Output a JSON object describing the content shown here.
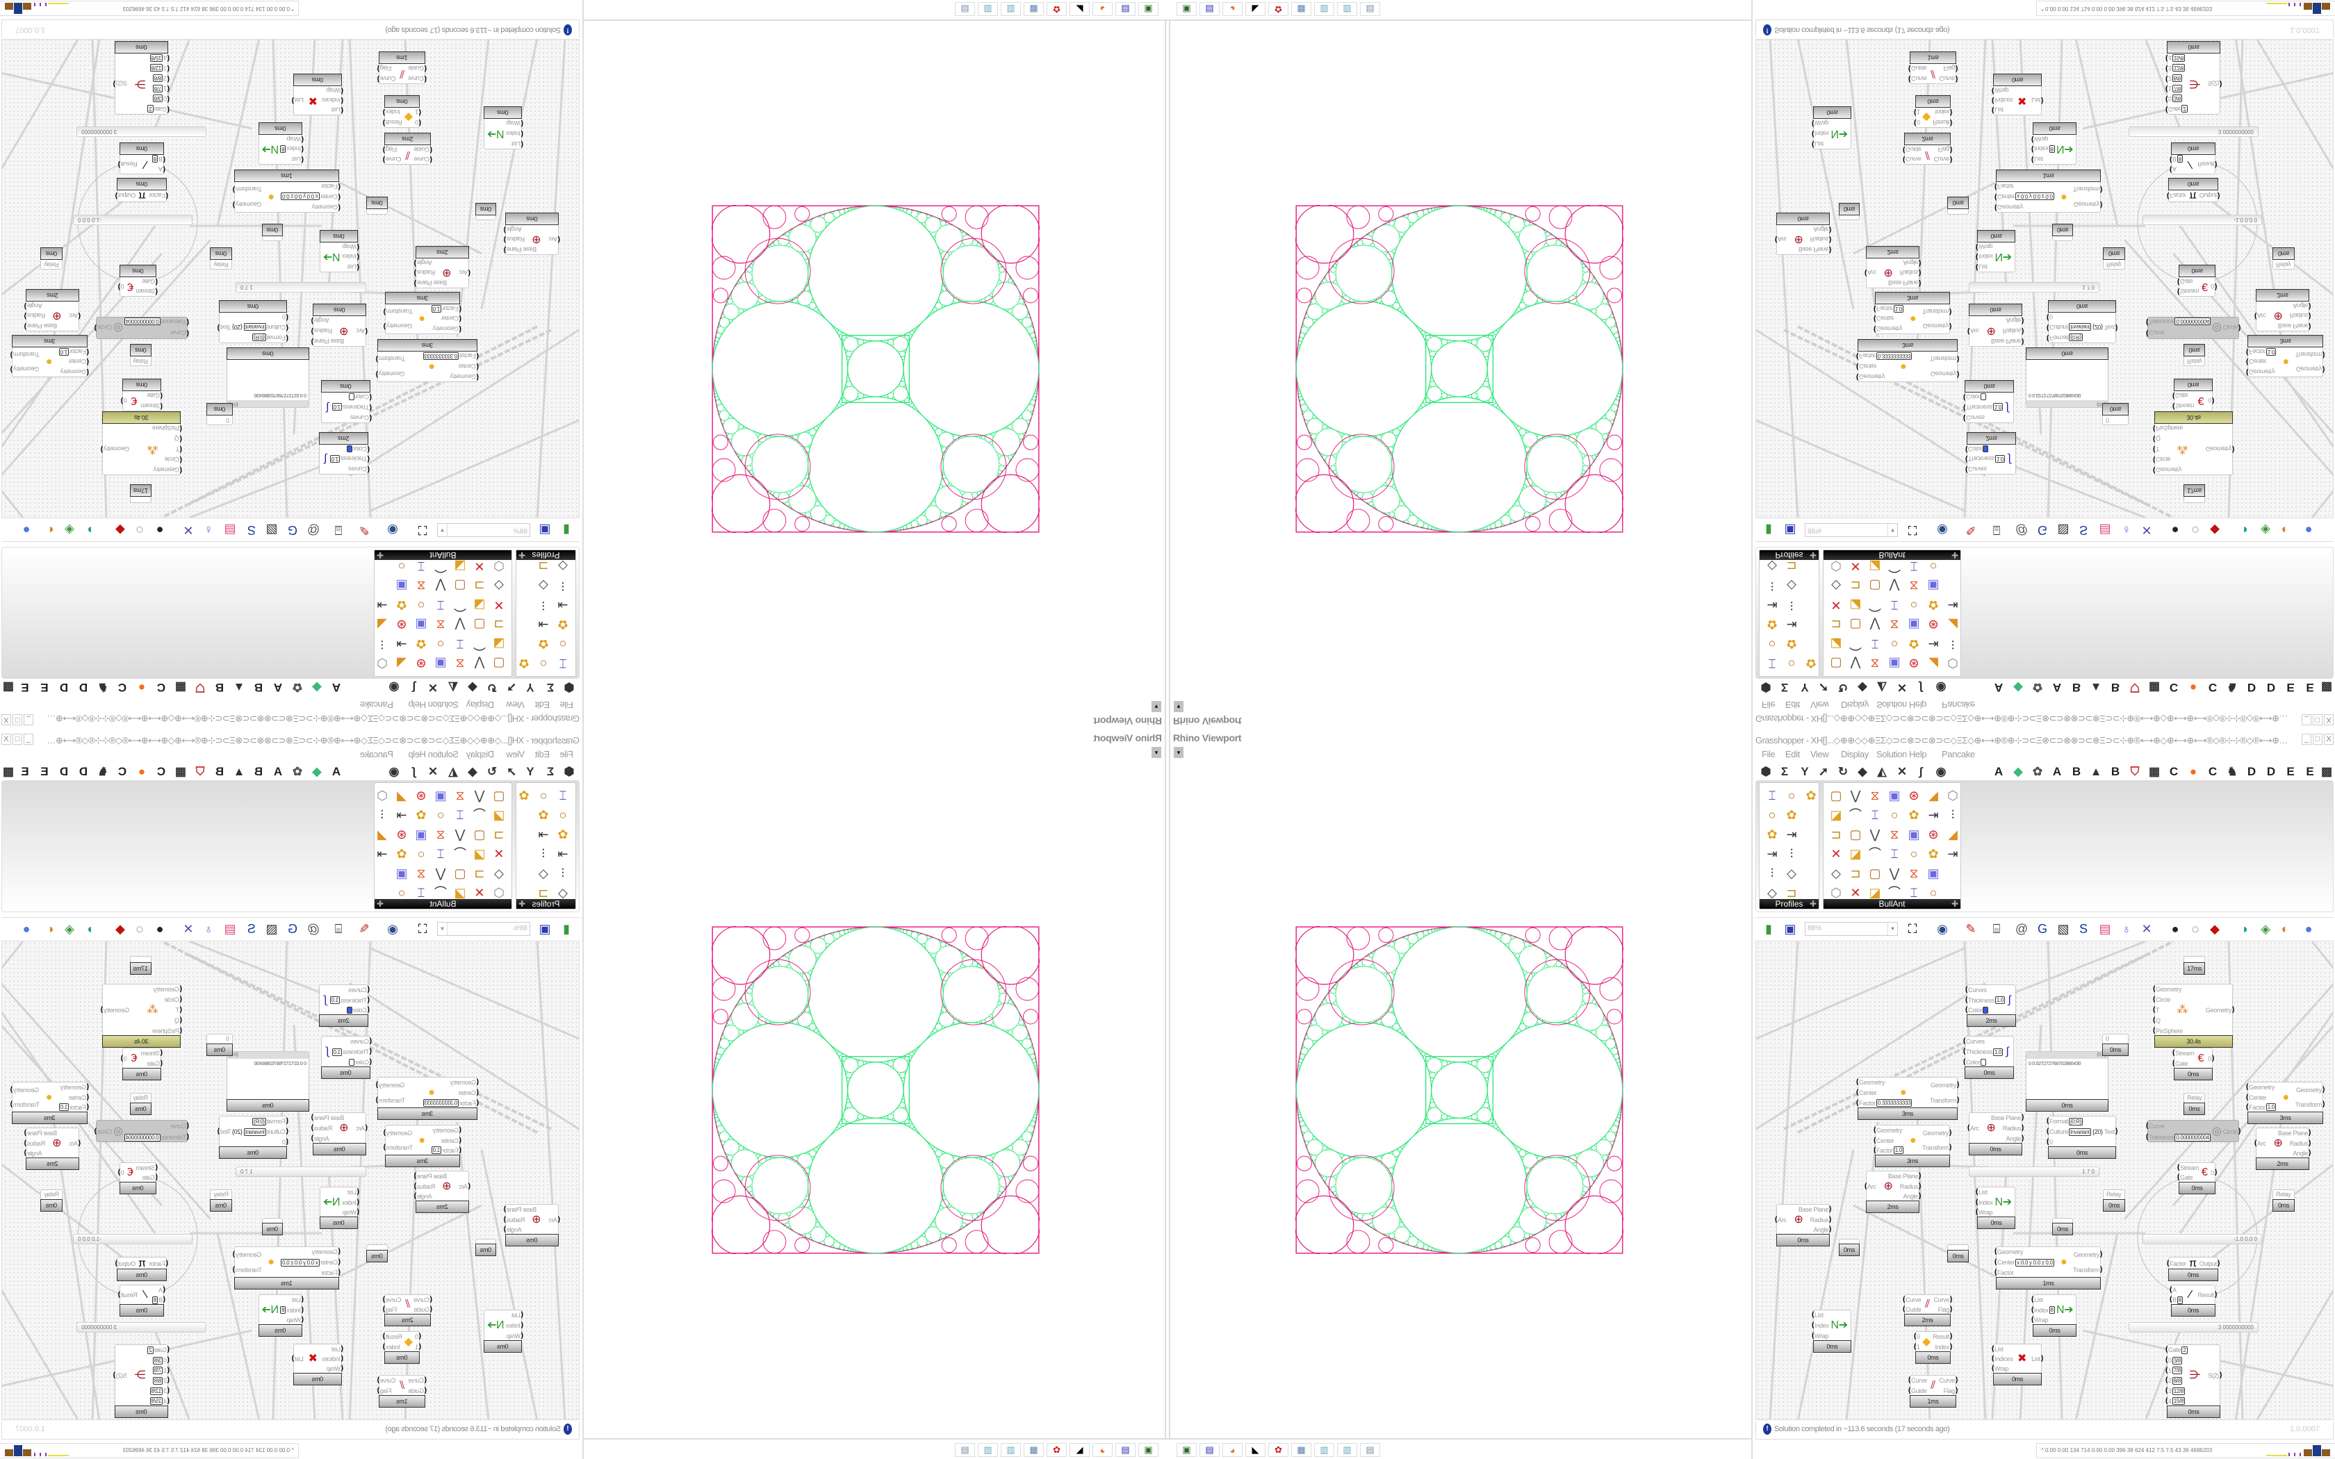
{
  "viewport": {
    "title": "Rhino Viewport",
    "dropdown": "▾",
    "close": "x",
    "colors": {
      "outline": "#e8177d",
      "gasket": "#2ee87a",
      "outer_circle": "#9a7a9a"
    }
  },
  "taskbar": {
    "icons": [
      {
        "name": "terminal-icon",
        "glyph": "▣",
        "color": "#2a6a2a"
      },
      {
        "name": "floppy-64-icon",
        "glyph": "▤",
        "color": "#2a2ab0"
      },
      {
        "name": "firefox-icon",
        "glyph": "◕",
        "color": "#e86a1a"
      },
      {
        "name": "rhino-icon",
        "glyph": "◣",
        "color": "#000000"
      },
      {
        "name": "red-app-icon",
        "glyph": "✿",
        "color": "#d01a1a"
      },
      {
        "name": "calculator-icon",
        "glyph": "▦",
        "color": "#5a7ab0"
      },
      {
        "name": "notepad-icon",
        "glyph": "▥",
        "color": "#6aa0c0"
      },
      {
        "name": "notepad-icon",
        "glyph": "▥",
        "color": "#6aa0c0"
      },
      {
        "name": "document-icon",
        "glyph": "▤",
        "color": "#7a8aa0"
      }
    ]
  },
  "gh": {
    "title": "Grasshopper - XH[]...◇⊕⊕◇◇⊕ΞΣ◇⊃⊂⊗⊃⊂⊗⊃⊂◇ΞΣ◇⊕⟷⊕®⊕⊹⊃⊂Ξ⊗⊂⊃⊗⊗⊃⊂⊗Ξ⊃⊂⊹⊕®⟷⊕◇⊕⟷⊕⟷®◇®⊹⊹®◇®⟷⊕⟷⊕◇⊕⟷®⊕⊹⊃⊂Ξ⊗⊂⊃⊗...",
    "window_buttons": [
      "_",
      "□",
      "X"
    ],
    "menu": [
      "File",
      "Edit",
      "View",
      "Display",
      "Solution",
      "Help",
      "Pancake"
    ],
    "tabs": [
      {
        "name": "params-icon",
        "label": "⬢",
        "color": "#333"
      },
      {
        "name": "maths-icon",
        "label": "Σ",
        "color": "#333"
      },
      {
        "name": "sets-icon",
        "label": "Y",
        "color": "#333"
      },
      {
        "name": "vector-icon",
        "label": "➚",
        "color": "#333"
      },
      {
        "name": "curve-icon",
        "label": "↻",
        "color": "#333"
      },
      {
        "name": "surface-icon",
        "label": "◆",
        "color": "#333"
      },
      {
        "name": "mesh-icon",
        "label": "◭",
        "color": "#333"
      },
      {
        "name": "intersect-icon",
        "label": "✕",
        "color": "#333"
      },
      {
        "name": "transform-icon",
        "label": "ʃ",
        "color": "#333"
      },
      {
        "name": "display-icon",
        "label": "◉",
        "color": "#333"
      },
      {
        "name": "tab-a",
        "label": "A",
        "color": "#222"
      },
      {
        "name": "green-gem-icon",
        "label": "◆",
        "color": "#3cb878"
      },
      {
        "name": "gear-icon",
        "label": "✿",
        "color": "#555"
      },
      {
        "name": "tab-a",
        "label": "A",
        "color": "#222"
      },
      {
        "name": "tab-b",
        "label": "B",
        "color": "#222"
      },
      {
        "name": "mountain-icon",
        "label": "▲",
        "color": "#333"
      },
      {
        "name": "tab-b",
        "label": "B",
        "color": "#222"
      },
      {
        "name": "shield-icon",
        "label": "⛉",
        "color": "#c03030"
      },
      {
        "name": "grid-icon",
        "label": "▦",
        "color": "#333"
      },
      {
        "name": "tab-c",
        "label": "C",
        "color": "#222"
      },
      {
        "name": "orange-circle-icon",
        "label": "●",
        "color": "#f07020"
      },
      {
        "name": "tab-c",
        "label": "C",
        "color": "#222"
      },
      {
        "name": "bird-icon",
        "label": "♞",
        "color": "#333"
      },
      {
        "name": "tab-d",
        "label": "D",
        "color": "#222"
      },
      {
        "name": "tab-d",
        "label": "D",
        "color": "#222"
      },
      {
        "name": "tab-e",
        "label": "E",
        "color": "#222"
      },
      {
        "name": "tab-e",
        "label": "E",
        "color": "#222"
      },
      {
        "name": "grid-icon",
        "label": "▩",
        "color": "#333"
      }
    ],
    "panels": [
      {
        "name": "Profiles",
        "expand": "✚"
      },
      {
        "name": "BullAnt",
        "expand": "✚"
      }
    ],
    "zoom": "88%",
    "canvas": {
      "nodes": [
        {
          "type": "custom-preview",
          "inputs": [
            {
              "label": "Curves"
            },
            {
              "label": "Thickness",
              "value": "1.0"
            },
            {
              "label": "Color",
              "swatch": "#3a5ae0"
            }
          ],
          "outputs": [],
          "icon": "∫",
          "icon_color": "#3a1ab0",
          "footer": "2ms"
        },
        {
          "type": "custom-preview",
          "inputs": [
            {
              "label": "Curves"
            },
            {
              "label": "Thickness",
              "value": "1.0"
            },
            {
              "label": "Color",
              "swatch": "#ffffff"
            }
          ],
          "outputs": [],
          "icon": "∫",
          "icon_color": "#3a1ab0",
          "footer": "0ms"
        },
        {
          "type": "scale",
          "inputs": [
            {
              "label": "Geometry"
            },
            {
              "label": "Center"
            },
            {
              "label": "Factor",
              "value": "0.3333333333"
            }
          ],
          "outputs": [
            {
              "label": "Geometry"
            },
            {
              "label": "Transform"
            }
          ],
          "icon": "●",
          "icon_color": "#f0b020",
          "footer": "3ms"
        },
        {
          "type": "scale",
          "inputs": [
            {
              "label": "Geometry"
            },
            {
              "label": "Center"
            },
            {
              "label": "Factor",
              "value": "1.0"
            }
          ],
          "outputs": [
            {
              "label": "Geometry"
            },
            {
              "label": "Transform"
            }
          ],
          "icon": "●",
          "icon_color": "#f0b020",
          "footer": "3ms"
        },
        {
          "type": "panel",
          "header": "{0;0}",
          "text": "0  0.027272768702880430",
          "footer": "0ms"
        },
        {
          "type": "arc",
          "inputs": [
            {
              "label": "Arc"
            }
          ],
          "outputs": [
            {
              "label": "Base Plane"
            },
            {
              "label": "Radius"
            },
            {
              "label": "Angle"
            }
          ],
          "icon": "⊕",
          "icon_color": "#a01020",
          "footer": "0ms"
        },
        {
          "type": "format",
          "inputs": [
            {
              "label": "Format",
              "value": "{0:R}"
            },
            {
              "label": "Culture",
              "value": "Invariant"
            },
            {
              "label": "0"
            }
          ],
          "outputs": [
            {
              "label": "Text"
            }
          ],
          "icon": "{20}",
          "icon_color": "#333",
          "footer": "0ms"
        },
        {
          "type": "number",
          "inputs": [],
          "outputs": [],
          "label": "0",
          "footer": "0ms"
        },
        {
          "type": "kangaroo-solver",
          "inputs": [
            {
              "label": "Geometry"
            },
            {
              "label": "Circle"
            },
            {
              "label": "T"
            },
            {
              "label": "Q"
            },
            {
              "label": "PixSphere"
            }
          ],
          "outputs": [
            {
              "label": "Geometry"
            }
          ],
          "icon": "⁂",
          "icon_color": "#e08020",
          "footer": "30.4s",
          "footer_style": "olive"
        },
        {
          "type": "param",
          "inputs": [],
          "outputs": [],
          "footer": "17ms"
        },
        {
          "type": "stream-gate",
          "inputs": [
            {
              "label": "Stream"
            },
            {
              "label": "Gate"
            }
          ],
          "outputs": [
            {
              "label": "0"
            }
          ],
          "icon": "€",
          "icon_color": "#c01020",
          "footer": "0ms"
        },
        {
          "type": "relay",
          "inputs": [],
          "outputs": [],
          "label": "Relay",
          "footer": "0ms"
        },
        {
          "type": "fit-circle",
          "inputs": [
            {
              "label": "Curve"
            },
            {
              "label": "Tolerance",
              "value": "0.0000000004"
            }
          ],
          "outputs": [
            {
              "label": "Circle"
            }
          ],
          "icon": "◎",
          "icon_color": "#888",
          "disabled": true
        },
        {
          "type": "scale",
          "inputs": [
            {
              "label": "Geometry"
            },
            {
              "label": "Center"
            },
            {
              "label": "Factor",
              "value": "1.0"
            }
          ],
          "outputs": [
            {
              "label": "Geometry"
            },
            {
              "label": "Transform"
            }
          ],
          "icon": "●",
          "icon_color": "#f0b020",
          "footer": "3ms"
        },
        {
          "type": "arc",
          "inputs": [
            {
              "label": "Arc"
            }
          ],
          "outputs": [
            {
              "label": "Base Plane"
            },
            {
              "label": "Radius"
            },
            {
              "label": "Angle"
            }
          ],
          "icon": "⊕",
          "icon_color": "#a01020",
          "footer": "2ms"
        },
        {
          "type": "arc",
          "inputs": [
            {
              "label": "Arc"
            }
          ],
          "outputs": [
            {
              "label": "Base Plane"
            },
            {
              "label": "Radius"
            },
            {
              "label": "Angle"
            }
          ],
          "icon": "⊕",
          "icon_color": "#a01020",
          "footer": "2ms"
        },
        {
          "type": "arc",
          "inputs": [
            {
              "label": "Arc"
            }
          ],
          "outputs": [
            {
              "label": "Base Plane"
            },
            {
              "label": "Radius"
            },
            {
              "label": "Angle"
            }
          ],
          "icon": "⊕",
          "icon_color": "#a01020",
          "footer": "0ms"
        },
        {
          "type": "relay",
          "inputs": [],
          "outputs": [],
          "footer": "0ms"
        },
        {
          "type": "list-item",
          "inputs": [
            {
              "label": "List"
            },
            {
              "label": "Index"
            },
            {
              "label": "Wrap"
            }
          ],
          "outputs": [],
          "icon": "N➔",
          "icon_color": "#2a9a2a",
          "footer": "0ms"
        },
        {
          "type": "relay",
          "inputs": [],
          "outputs": [],
          "footer": "0ms"
        },
        {
          "type": "relay",
          "inputs": [],
          "outputs": [],
          "footer": "0ms"
        },
        {
          "type": "scale",
          "inputs": [
            {
              "label": "Geometry"
            },
            {
              "label": "Center",
              "value": "x 0.0  y 0.0  z 0.0"
            },
            {
              "label": "Factor"
            }
          ],
          "outputs": [
            {
              "label": "Geometry"
            },
            {
              "label": "Transform"
            }
          ],
          "icon": "●",
          "icon_color": "#f0b020",
          "footer": "1ms"
        },
        {
          "type": "relay",
          "inputs": [],
          "outputs": [],
          "label": "Relay",
          "footer": "0ms"
        },
        {
          "type": "relay",
          "inputs": [],
          "outputs": [],
          "label": "Relay",
          "footer": "0ms"
        },
        {
          "type": "stream-gate",
          "inputs": [
            {
              "label": "Stream"
            },
            {
              "label": "Gate"
            }
          ],
          "outputs": [
            {
              "label": "0"
            }
          ],
          "icon": "€",
          "icon_color": "#c01020",
          "footer": "0ms"
        },
        {
          "type": "pi",
          "inputs": [
            {
              "label": "Factor"
            }
          ],
          "outputs": [
            {
              "label": "Output"
            }
          ],
          "icon": "π",
          "icon_color": "#000",
          "footer": "0ms"
        },
        {
          "type": "division",
          "inputs": [
            {
              "label": "A"
            },
            {
              "label": "B",
              "value": "8"
            }
          ],
          "outputs": [
            {
              "label": "Result"
            }
          ],
          "icon": "⁄",
          "icon_color": "#000",
          "footer": "0ms"
        },
        {
          "type": "flip-curve",
          "inputs": [
            {
              "label": "Curve"
            },
            {
              "label": "Guide"
            }
          ],
          "outputs": [
            {
              "label": "Curve"
            },
            {
              "label": "Flag"
            }
          ],
          "icon": "⫽",
          "icon_color": "#b01020",
          "footer": "2ms"
        },
        {
          "type": "list-item",
          "inputs": [
            {
              "label": "List"
            },
            {
              "label": "Index",
              "value": "8"
            },
            {
              "label": "Wrap"
            }
          ],
          "outputs": [],
          "icon": "N➔",
          "icon_color": "#2a9a2a",
          "footer": "0ms"
        },
        {
          "type": "list-item",
          "inputs": [
            {
              "label": "List"
            },
            {
              "label": "Index"
            },
            {
              "label": "Wrap"
            }
          ],
          "outputs": [],
          "icon": "N➔",
          "icon_color": "#2a9a2a",
          "footer": "0ms"
        },
        {
          "type": "stream-filter",
          "inputs": [
            {
              "label": "0"
            },
            {
              "label": "1"
            }
          ],
          "outputs": [
            {
              "label": "Result"
            },
            {
              "label": "Index"
            }
          ],
          "icon": "◆",
          "icon_color": "#f0b020",
          "footer": "0ms"
        },
        {
          "type": "cull-index",
          "inputs": [
            {
              "label": "List"
            },
            {
              "label": "Indices"
            },
            {
              "label": "Wrap"
            }
          ],
          "outputs": [
            {
              "label": "List"
            }
          ],
          "icon": "✖",
          "icon_color": "#d01010",
          "footer": "0ms"
        },
        {
          "type": "flip-curve",
          "inputs": [
            {
              "label": "Curve"
            },
            {
              "label": "Guide"
            }
          ],
          "outputs": [
            {
              "label": "Curve"
            },
            {
              "label": "Flag"
            }
          ],
          "icon": "⫽",
          "icon_color": "#b01020",
          "footer": "1ms"
        },
        {
          "type": "stack-data",
          "inputs": [
            {
              "label": "Gate",
              "value": "2"
            },
            {
              "label": "0",
              "value": "3/8"
            },
            {
              "label": "1",
              "value": "7/8"
            },
            {
              "label": "2",
              "value": "8/8"
            },
            {
              "label": "3",
              "value": "12/8"
            },
            {
              "label": "4",
              "value": "15/8"
            }
          ],
          "outputs": [
            {
              "label": "S(2)"
            }
          ],
          "icon": "⋺",
          "icon_color": "#a01020",
          "footer": "0ms"
        }
      ],
      "sliders": [
        {
          "value": "1 7 0"
        },
        {
          "value": "-1.0  0.0  0"
        },
        {
          "value": "3 0000000000"
        }
      ]
    },
    "status": {
      "message": "Solution completed in ~113.6 seconds (17 seconds ago)",
      "version": "1.0.0007",
      "info_icon": "!"
    },
    "perf": {
      "values": "^  0.00 0.00 134 714 0.00 0.00 396 38 624 412 7.5 7.5 43 36 4696203"
    }
  }
}
